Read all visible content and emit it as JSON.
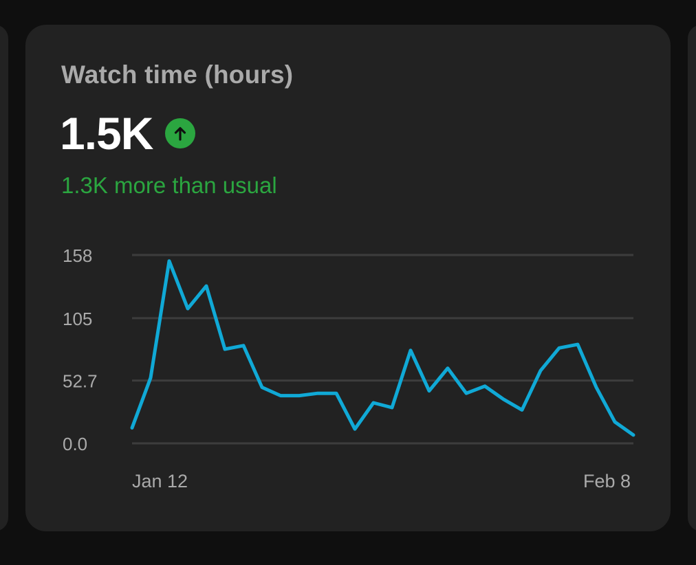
{
  "card": {
    "title": "Watch time (hours)",
    "value": "1.5K",
    "trend_icon": "arrow-up-circle-icon",
    "delta_text": "1.3K more than usual"
  },
  "colors": {
    "page_background": "#0f0f0f",
    "card_background": "#222222",
    "title": "#aaaaaa",
    "value": "#ffffff",
    "positive": "#2ba640",
    "line": "#10a9d6",
    "grid": "#3d3d3d",
    "tick_label": "#aaaaaa"
  },
  "chart_data": {
    "type": "line",
    "title": "Watch time (hours)",
    "xlabel": "",
    "ylabel": "",
    "x_tick_labels": [
      "Jan 12",
      "Feb 8"
    ],
    "x_range": [
      "Jan 11",
      "Feb 8"
    ],
    "y_ticks": [
      0.0,
      52.7,
      105,
      158
    ],
    "y_tick_labels": [
      "0.0",
      "52.7",
      "105",
      "158"
    ],
    "ylim": [
      0,
      158
    ],
    "grid": "horizontal",
    "legend": "none",
    "series": [
      {
        "values": [
          13,
          55,
          153,
          113,
          132,
          79,
          82,
          47,
          40,
          40,
          42,
          42,
          12,
          34,
          30,
          78,
          44,
          63,
          42,
          48,
          37,
          28,
          61,
          80,
          83,
          47,
          18,
          7
        ]
      }
    ]
  }
}
